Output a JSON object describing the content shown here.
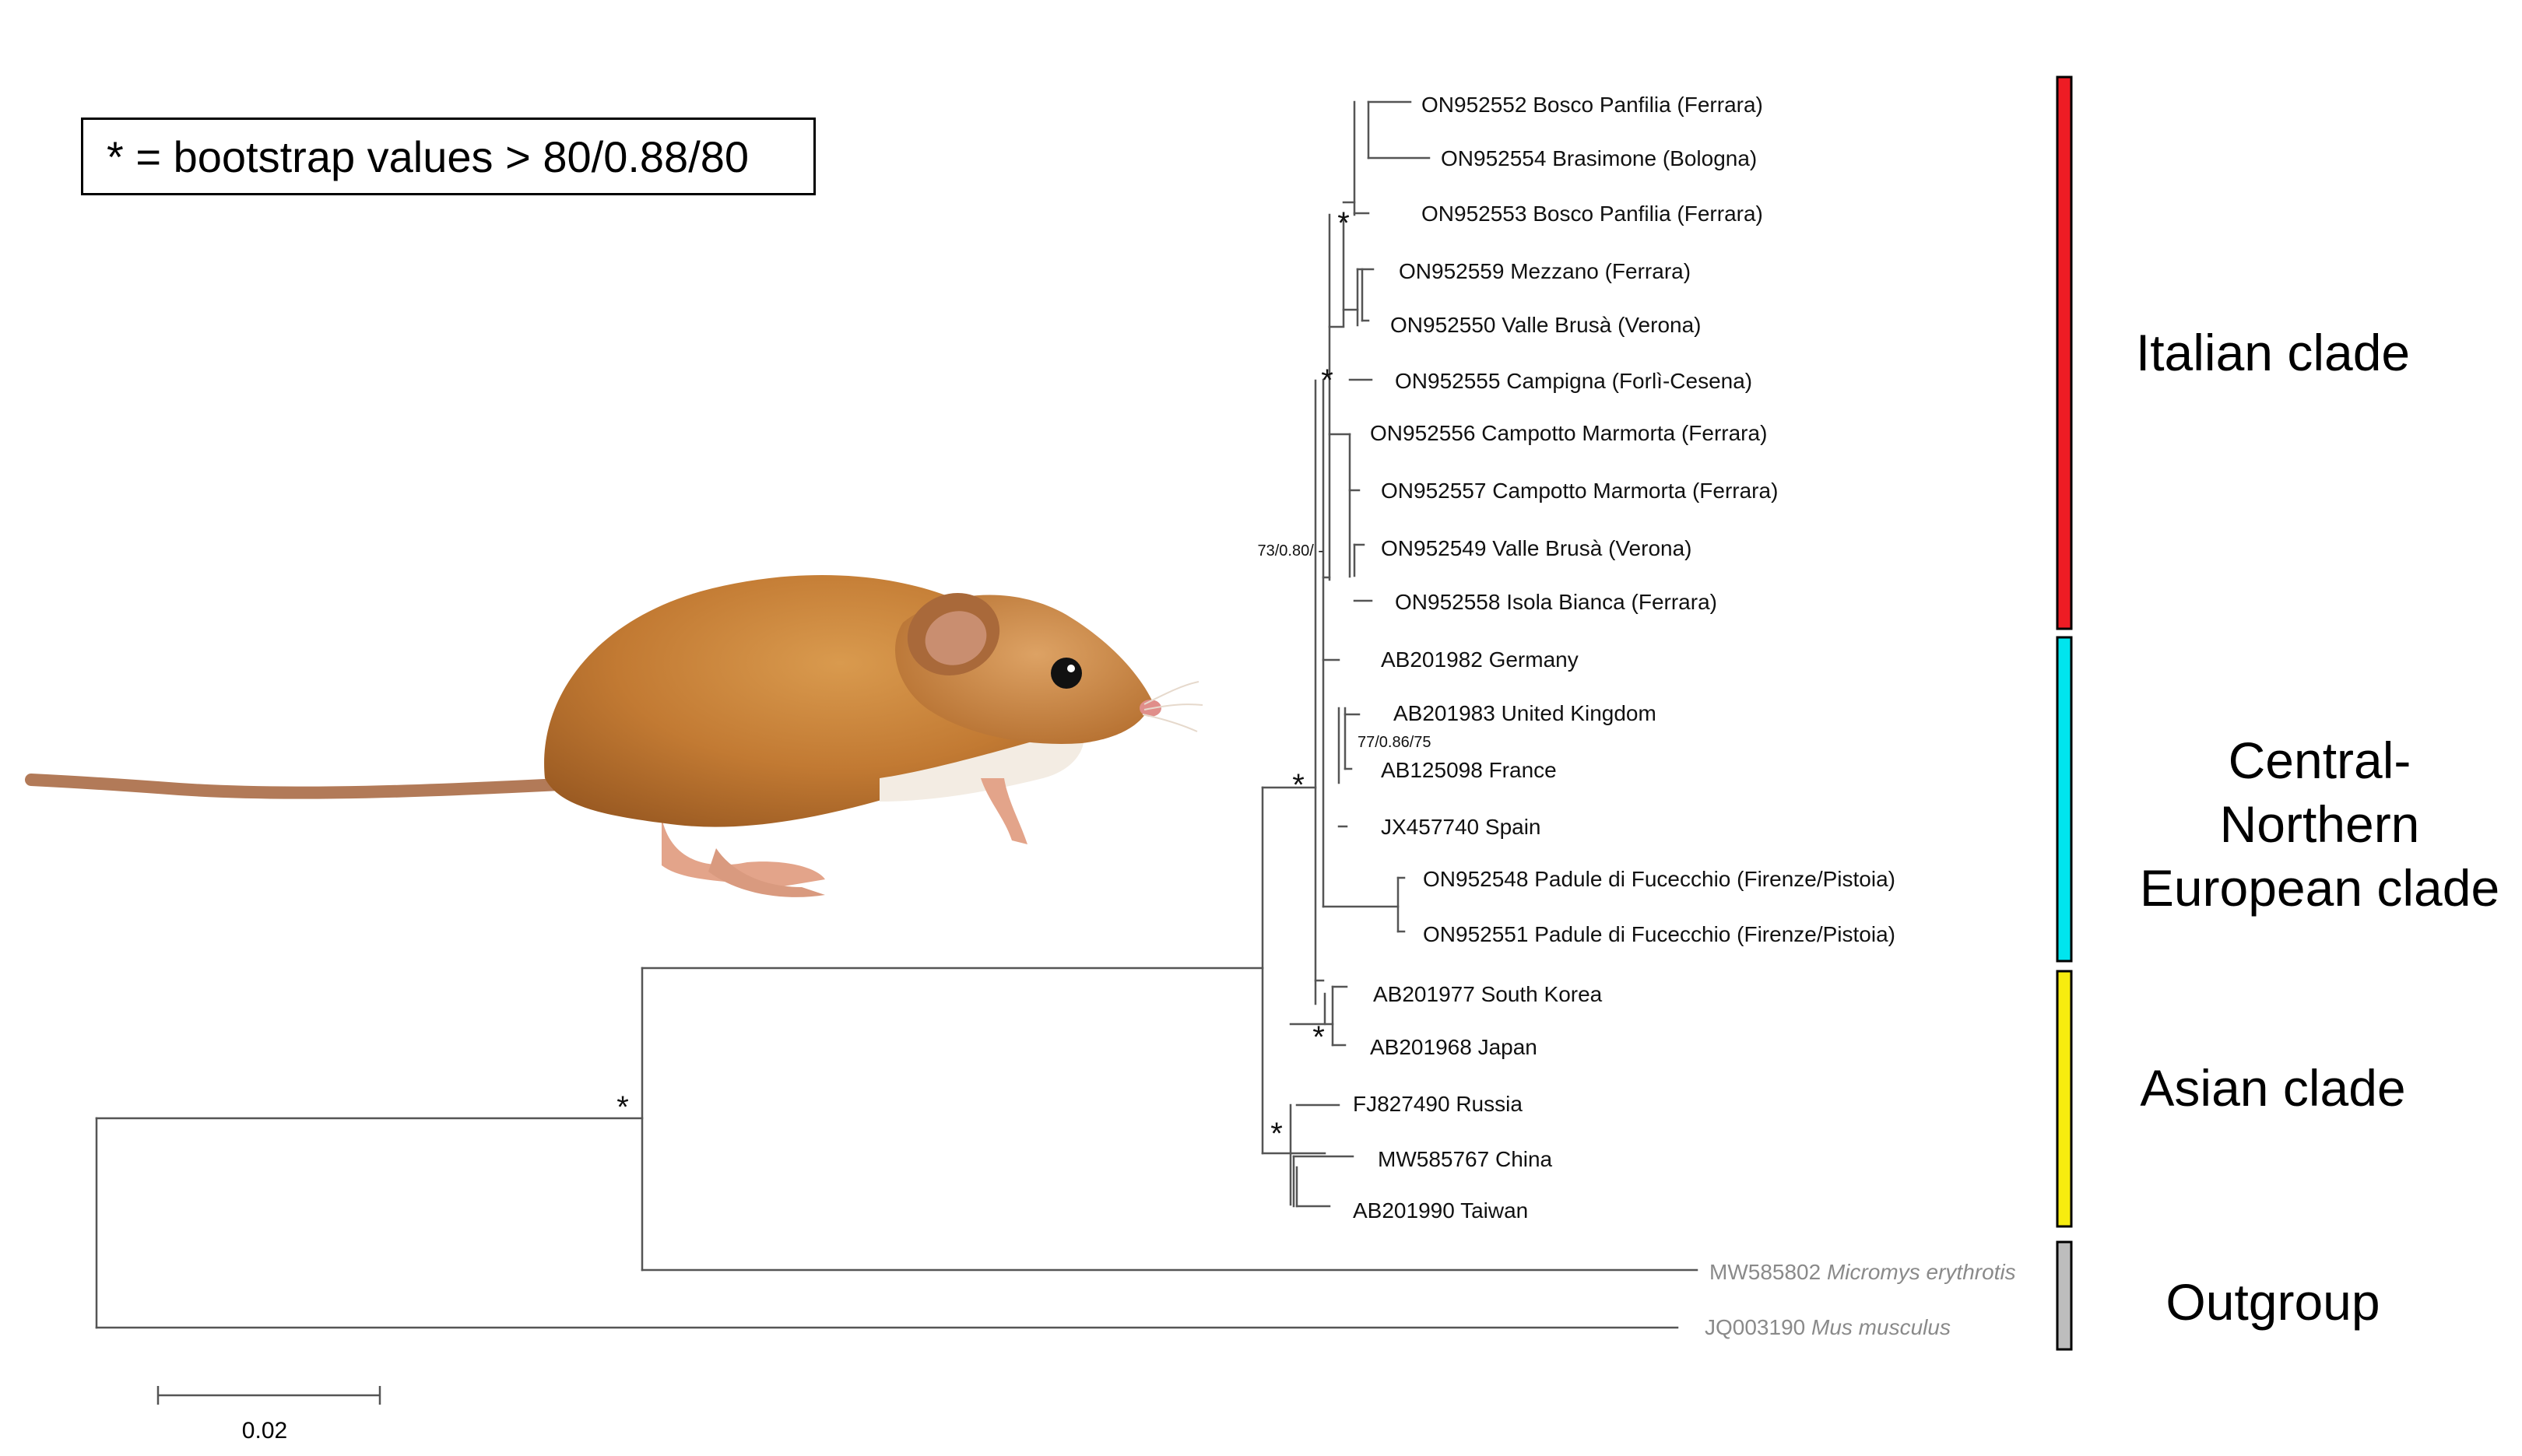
{
  "legend": {
    "text": "* = bootstrap values > 80/0.88/80"
  },
  "scale_bar": {
    "label": "0.02"
  },
  "tips": [
    {
      "id": "t1",
      "accession": "ON952552",
      "label": "Bosco Panfilia (Ferrara)"
    },
    {
      "id": "t2",
      "accession": "ON952554",
      "label": "Brasimone (Bologna)"
    },
    {
      "id": "t3",
      "accession": "ON952553",
      "label": "Bosco Panfilia (Ferrara)"
    },
    {
      "id": "t4",
      "accession": "ON952559",
      "label": "Mezzano (Ferrara)"
    },
    {
      "id": "t5",
      "accession": "ON952550",
      "label": "Valle Brusà (Verona)"
    },
    {
      "id": "t6",
      "accession": "ON952555",
      "label": "Campigna (Forlì-Cesena)"
    },
    {
      "id": "t7",
      "accession": "ON952556",
      "label": "Campotto Marmorta (Ferrara)"
    },
    {
      "id": "t8",
      "accession": "ON952557",
      "label": "Campotto Marmorta (Ferrara)"
    },
    {
      "id": "t9",
      "accession": "ON952549",
      "label": "Valle Brusà (Verona)"
    },
    {
      "id": "t10",
      "accession": "ON952558",
      "label": "Isola Bianca (Ferrara)"
    },
    {
      "id": "t11",
      "accession": "AB201982",
      "label": "Germany"
    },
    {
      "id": "t12",
      "accession": "AB201983",
      "label": "United Kingdom"
    },
    {
      "id": "t13",
      "accession": "AB125098",
      "label": "France"
    },
    {
      "id": "t14",
      "accession": "JX457740",
      "label": "Spain"
    },
    {
      "id": "t15",
      "accession": "ON952548",
      "label": "Padule di Fucecchio (Firenze/Pistoia)"
    },
    {
      "id": "t16",
      "accession": "ON952551",
      "label": "Padule di Fucecchio (Firenze/Pistoia)"
    },
    {
      "id": "t17",
      "accession": "AB201977",
      "label": "South Korea"
    },
    {
      "id": "t18",
      "accession": "AB201968",
      "label": "Japan"
    },
    {
      "id": "t19",
      "accession": "FJ827490",
      "label": "Russia"
    },
    {
      "id": "t20",
      "accession": "MW585767",
      "label": "China"
    },
    {
      "id": "t21",
      "accession": "AB201990",
      "label": "Taiwan"
    },
    {
      "id": "t22",
      "accession": "MW585802",
      "label": "Micromys erythrotis",
      "italic": true,
      "color": "#8a8a8a"
    },
    {
      "id": "t23",
      "accession": "JQ003190",
      "label": "Mus musculus",
      "italic": true,
      "color": "#8a8a8a"
    }
  ],
  "support_values": [
    {
      "id": "s1",
      "text": "*"
    },
    {
      "id": "s2",
      "text": "*"
    },
    {
      "id": "s3",
      "text": "73/0.80/ -"
    },
    {
      "id": "s4",
      "text": "77/0.86/75"
    },
    {
      "id": "s5",
      "text": "*"
    },
    {
      "id": "s6",
      "text": "*"
    },
    {
      "id": "s7",
      "text": "*"
    },
    {
      "id": "s8",
      "text": "*"
    }
  ],
  "clades": [
    {
      "id": "italian",
      "name": "Italian clade",
      "lines": [
        "Italian clade"
      ],
      "color": "#ee1c24"
    },
    {
      "id": "central",
      "name": "Central-Northern European clade",
      "lines": [
        "Central-",
        "Northern",
        "European clade"
      ],
      "color": "#00e5ee"
    },
    {
      "id": "asian",
      "name": "Asian clade",
      "lines": [
        "Asian clade"
      ],
      "color": "#f7ec0f"
    },
    {
      "id": "outgroup",
      "name": "Outgroup",
      "lines": [
        "Outgroup"
      ],
      "color": "#bdbdbd"
    }
  ],
  "image": {
    "subject": "harvest-mouse"
  }
}
